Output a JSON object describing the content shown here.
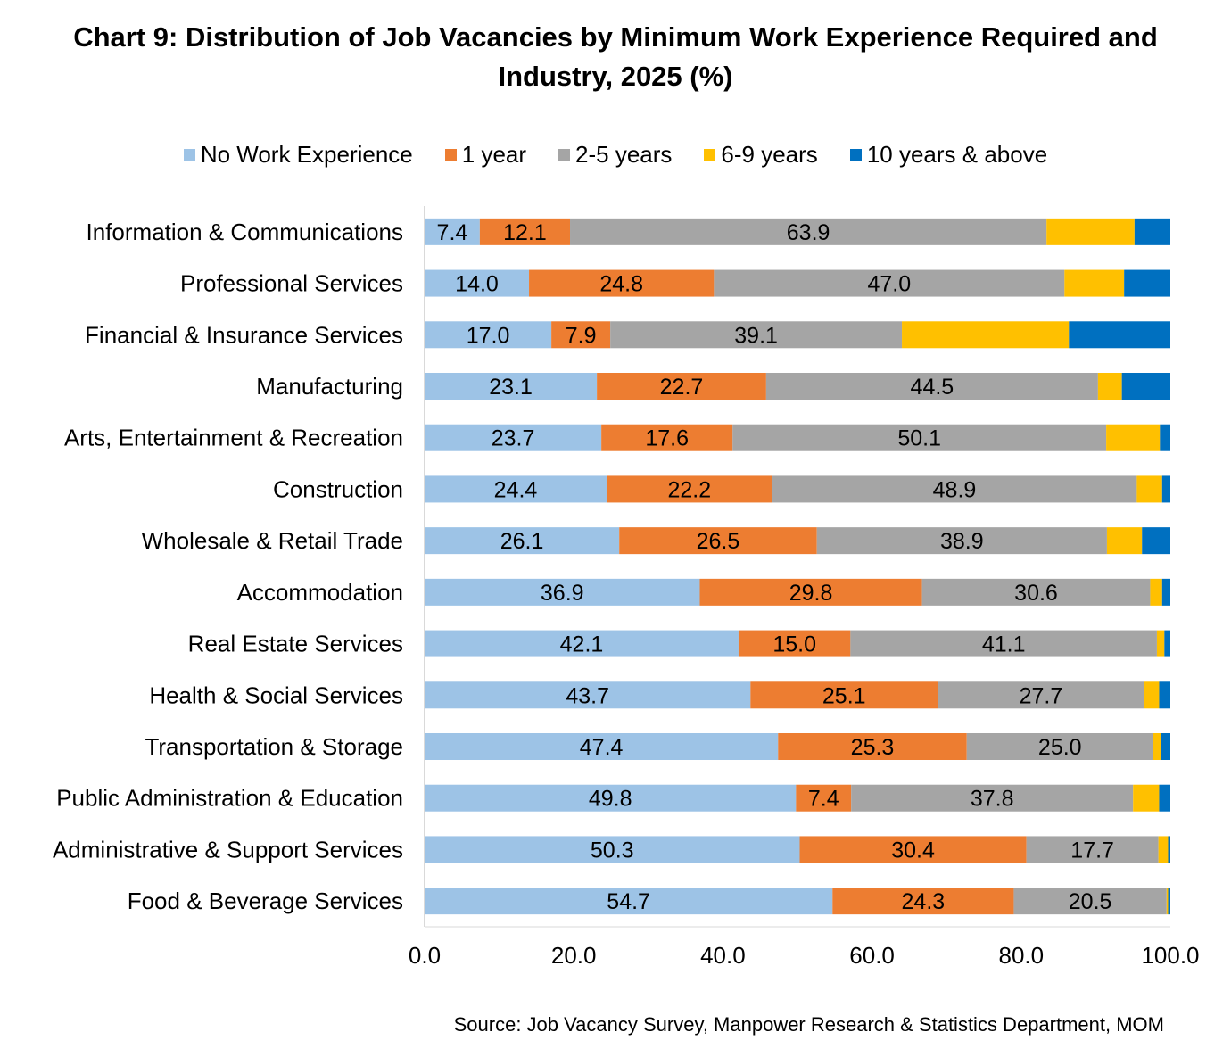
{
  "chart_data": {
    "type": "bar",
    "orientation": "horizontal",
    "stacked": true,
    "title_lines": [
      "Chart 9: Distribution of Job Vacancies by Minimum Work Experience Required and",
      "Industry, 2025 (%)"
    ],
    "source": "Source: Job Vacancy Survey, Manpower Research & Statistics Department, MOM",
    "categories": [
      "Information & Communications",
      "Professional Services",
      "Financial & Insurance Services",
      "Manufacturing",
      "Arts, Entertainment & Recreation",
      "Construction",
      "Wholesale & Retail Trade",
      "Accommodation",
      "Real Estate Services",
      "Health & Social Services",
      "Transportation & Storage",
      "Public Administration & Education",
      "Administrative & Support Services",
      "Food & Beverage Services"
    ],
    "series": [
      {
        "name": "No Work Experience",
        "color": "#9DC3E6",
        "values": [
          7.4,
          14.0,
          17.0,
          23.1,
          23.7,
          24.4,
          26.1,
          36.9,
          42.1,
          43.7,
          47.4,
          49.8,
          50.3,
          54.7
        ]
      },
      {
        "name": "1 year",
        "color": "#ED7D31",
        "values": [
          12.1,
          24.8,
          7.9,
          22.7,
          17.6,
          22.2,
          26.5,
          29.8,
          15.0,
          25.1,
          25.3,
          7.4,
          30.4,
          24.3
        ]
      },
      {
        "name": "2-5 years",
        "color": "#A5A5A5",
        "values": [
          63.9,
          47.0,
          39.1,
          44.5,
          50.1,
          48.9,
          38.9,
          30.6,
          41.1,
          27.7,
          25.0,
          37.8,
          17.7,
          20.5
        ]
      },
      {
        "name": "6-9 years",
        "color": "#FFC000",
        "values": [
          11.8,
          8.0,
          22.4,
          3.2,
          7.2,
          3.4,
          4.7,
          1.6,
          1.0,
          2.0,
          1.1,
          3.5,
          1.3,
          0.2
        ]
      },
      {
        "name": "10 years & above",
        "color": "#0070C0",
        "values": [
          4.8,
          6.2,
          13.6,
          6.5,
          1.4,
          1.1,
          3.8,
          1.1,
          0.8,
          1.5,
          1.2,
          1.5,
          0.3,
          0.3
        ]
      }
    ],
    "labeled_series": [
      "No Work Experience",
      "1 year",
      "2-5 years"
    ],
    "xlim": [
      0,
      100
    ],
    "xticks": [
      "0.0",
      "20.0",
      "40.0",
      "60.0",
      "80.0",
      "100.0"
    ],
    "grid": false,
    "legend_position": "top"
  }
}
